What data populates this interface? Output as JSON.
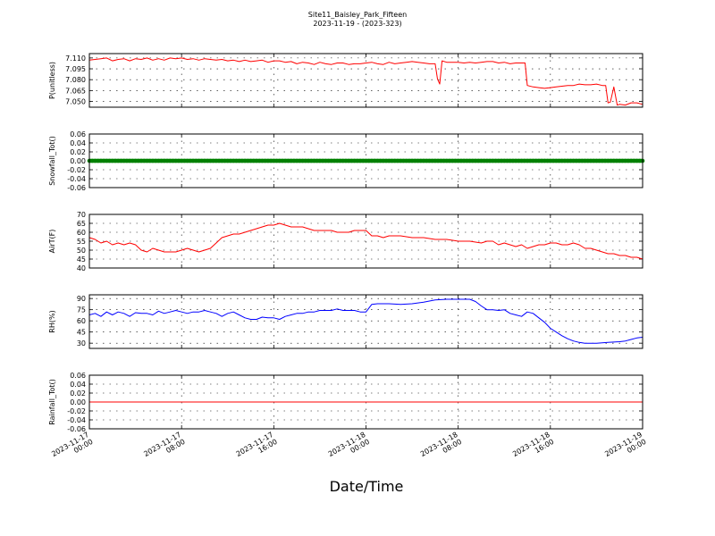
{
  "chart_data": {
    "type": "line",
    "title": "Site11_Baisley_Park_Fifteen",
    "subtitle": "2023-11-19 - (2023-323)",
    "xlabel": "Date/Time",
    "x_ticks": [
      {
        "value": 0,
        "line1": "2023-11-17",
        "line2": "00:00"
      },
      {
        "value": 8,
        "line1": "2023-11-17",
        "line2": "08:00"
      },
      {
        "value": 16,
        "line1": "2023-11-17",
        "line2": "16:00"
      },
      {
        "value": 24,
        "line1": "2023-11-18",
        "line2": "00:00"
      },
      {
        "value": 32,
        "line1": "2023-11-18",
        "line2": "08:00"
      },
      {
        "value": 40,
        "line1": "2023-11-18",
        "line2": "16:00"
      },
      {
        "value": 48,
        "line1": "2023-11-19",
        "line2": "00:00"
      }
    ],
    "grid": true,
    "panels": [
      {
        "ylabel": "P(unitless)",
        "ylim": [
          7.042,
          7.116
        ],
        "yticks": [
          "7.110",
          "7.095",
          "7.080",
          "7.065",
          "7.050"
        ],
        "ytick_values": [
          7.11,
          7.095,
          7.08,
          7.065,
          7.05
        ],
        "color": "#ff0000",
        "style": "line",
        "series": {
          "x": [
            0,
            0.5,
            1,
            1.5,
            2,
            2.5,
            3,
            3.5,
            4,
            4.5,
            5,
            5.5,
            6,
            6.5,
            7,
            7.5,
            8,
            8.5,
            9,
            9.5,
            10,
            10.5,
            11,
            11.5,
            12,
            12.5,
            13,
            13.5,
            14,
            14.5,
            15,
            15.5,
            16,
            16.5,
            17,
            17.5,
            18,
            18.5,
            19,
            19.5,
            20,
            20.5,
            21,
            21.5,
            22,
            22.5,
            23,
            23.5,
            24,
            24.5,
            25,
            25.5,
            26,
            26.5,
            27,
            27.5,
            28,
            28.5,
            29,
            29.5,
            30,
            30.2,
            30.4,
            30.6,
            31,
            31.5,
            32,
            32.5,
            33,
            33.5,
            34,
            34.5,
            35,
            35.5,
            36,
            36.5,
            37,
            37.5,
            37.8,
            38,
            38.5,
            39,
            39.5,
            40,
            40.5,
            41,
            41.5,
            42,
            42.5,
            43,
            43.5,
            44,
            44.5,
            44.8,
            45,
            45.2,
            45.5,
            45.8,
            46,
            46.5,
            47,
            47.5,
            48
          ],
          "y": [
            7.107,
            7.108,
            7.109,
            7.11,
            7.106,
            7.108,
            7.109,
            7.106,
            7.109,
            7.108,
            7.11,
            7.107,
            7.109,
            7.107,
            7.11,
            7.109,
            7.11,
            7.108,
            7.109,
            7.107,
            7.109,
            7.108,
            7.107,
            7.108,
            7.106,
            7.107,
            7.105,
            7.107,
            7.105,
            7.106,
            7.107,
            7.104,
            7.106,
            7.106,
            7.104,
            7.105,
            7.102,
            7.104,
            7.103,
            7.101,
            7.104,
            7.102,
            7.101,
            7.103,
            7.103,
            7.101,
            7.102,
            7.102,
            7.103,
            7.104,
            7.102,
            7.101,
            7.104,
            7.102,
            7.103,
            7.104,
            7.105,
            7.104,
            7.103,
            7.102,
            7.102,
            7.081,
            7.074,
            7.106,
            7.104,
            7.104,
            7.104,
            7.103,
            7.104,
            7.103,
            7.104,
            7.105,
            7.105,
            7.103,
            7.104,
            7.102,
            7.103,
            7.103,
            7.103,
            7.072,
            7.07,
            7.069,
            7.068,
            7.069,
            7.07,
            7.071,
            7.072,
            7.072,
            7.074,
            7.073,
            7.073,
            7.074,
            7.072,
            7.072,
            7.048,
            7.049,
            7.07,
            7.045,
            7.046,
            7.045,
            7.048,
            7.048,
            7.046
          ]
        }
      },
      {
        "ylabel": "Snowfall_Tot()",
        "ylim": [
          -0.06,
          0.06
        ],
        "yticks": [
          "0.06",
          "0.04",
          "0.02",
          "0.00",
          "-0.02",
          "-0.04",
          "-0.06"
        ],
        "ytick_values": [
          0.06,
          0.04,
          0.02,
          0.0,
          -0.02,
          -0.04,
          -0.06
        ],
        "color": "#008000",
        "style": "dots",
        "series": {
          "constant": 0.0
        }
      },
      {
        "ylabel": "AirT(F)",
        "ylim": [
          40,
          70
        ],
        "yticks": [
          "70",
          "65",
          "60",
          "55",
          "50",
          "45",
          "40"
        ],
        "ytick_values": [
          70,
          65,
          60,
          55,
          50,
          45,
          40
        ],
        "color": "#ff0000",
        "style": "line",
        "series": {
          "x": [
            0,
            0.5,
            1,
            1.5,
            2,
            2.5,
            3,
            3.5,
            4,
            4.5,
            5,
            5.5,
            6,
            6.5,
            7,
            7.5,
            8,
            8.5,
            9,
            9.5,
            10,
            10.5,
            11,
            11.5,
            12,
            12.5,
            13,
            13.5,
            14,
            14.5,
            15,
            15.5,
            16,
            16.5,
            17,
            17.5,
            18,
            18.5,
            19,
            19.5,
            20,
            20.5,
            21,
            21.5,
            22,
            22.5,
            23,
            23.5,
            24,
            24.5,
            25,
            25.5,
            26,
            26.5,
            27,
            28,
            29,
            30,
            31,
            32,
            33,
            34,
            34.5,
            35,
            35.5,
            36,
            36.5,
            37,
            37.5,
            38,
            38.5,
            39,
            39.5,
            40,
            40.5,
            41,
            41.5,
            42,
            42.5,
            43,
            43.5,
            44,
            44.5,
            45,
            45.5,
            46,
            46.5,
            47,
            47.5,
            48
          ],
          "y": [
            57,
            56,
            54,
            55,
            53,
            54,
            53,
            54,
            53,
            50,
            49,
            51,
            50,
            49,
            49,
            49,
            50,
            51,
            50,
            49,
            50,
            51,
            54,
            57,
            58,
            59,
            59,
            60,
            61,
            62,
            63,
            64,
            64,
            65,
            64,
            63,
            63,
            63,
            62,
            61,
            61,
            61,
            61,
            60,
            60,
            60,
            61,
            61,
            61,
            58,
            58,
            57,
            58,
            58,
            58,
            57,
            57,
            56,
            56,
            55,
            55,
            54,
            55,
            55,
            53,
            54,
            53,
            52,
            53,
            51,
            52,
            53,
            53,
            54,
            54,
            53,
            53,
            54,
            53,
            51,
            51,
            50,
            49,
            48,
            48,
            47,
            47,
            46,
            46,
            45
          ]
        }
      },
      {
        "ylabel": "RH(%)",
        "ylim": [
          23,
          95
        ],
        "yticks": [
          "90",
          "75",
          "60",
          "45",
          "30"
        ],
        "ytick_values": [
          90,
          75,
          60,
          45,
          30
        ],
        "color": "#0000ff",
        "style": "line",
        "series": {
          "x": [
            0,
            0.5,
            1,
            1.5,
            2,
            2.5,
            3,
            3.5,
            4,
            4.5,
            5,
            5.5,
            6,
            6.5,
            7,
            7.5,
            8,
            8.5,
            9,
            9.5,
            10,
            10.5,
            11,
            11.5,
            12,
            12.5,
            13,
            13.5,
            14,
            14.5,
            15,
            15.5,
            16,
            16.5,
            17,
            17.5,
            18,
            18.5,
            19,
            19.5,
            20,
            20.5,
            21,
            21.5,
            22,
            22.5,
            23,
            23.5,
            24,
            24.5,
            25,
            26,
            27,
            28,
            29,
            30,
            31,
            32,
            33,
            33.5,
            34,
            34.5,
            35,
            35.5,
            36,
            36.5,
            37,
            37.5,
            38,
            38.5,
            39,
            39.5,
            40,
            40.5,
            41,
            41.5,
            42,
            42.5,
            43,
            44,
            45,
            46,
            46.5,
            47,
            47.5,
            48
          ],
          "y": [
            68,
            70,
            66,
            72,
            68,
            72,
            70,
            66,
            71,
            70,
            70,
            68,
            73,
            70,
            72,
            74,
            72,
            70,
            72,
            72,
            74,
            72,
            70,
            66,
            70,
            72,
            68,
            64,
            62,
            62,
            65,
            64,
            64,
            62,
            66,
            68,
            70,
            70,
            72,
            72,
            74,
            74,
            74,
            76,
            74,
            74,
            74,
            72,
            72,
            82,
            83,
            83,
            82,
            83,
            85,
            88,
            89,
            89,
            89,
            86,
            80,
            75,
            75,
            74,
            75,
            70,
            68,
            66,
            72,
            70,
            64,
            58,
            50,
            45,
            40,
            36,
            33,
            31,
            30,
            30,
            31,
            32,
            33,
            35,
            37,
            38
          ]
        }
      },
      {
        "ylabel": "Rainfall_Tot()",
        "ylim": [
          -0.06,
          0.06
        ],
        "yticks": [
          "0.06",
          "0.04",
          "0.02",
          "0.00",
          "-0.02",
          "-0.04",
          "-0.06"
        ],
        "ytick_values": [
          0.06,
          0.04,
          0.02,
          0.0,
          -0.02,
          -0.04,
          -0.06
        ],
        "color": "#ff0000",
        "style": "line",
        "series": {
          "constant": 0.0
        }
      }
    ]
  }
}
